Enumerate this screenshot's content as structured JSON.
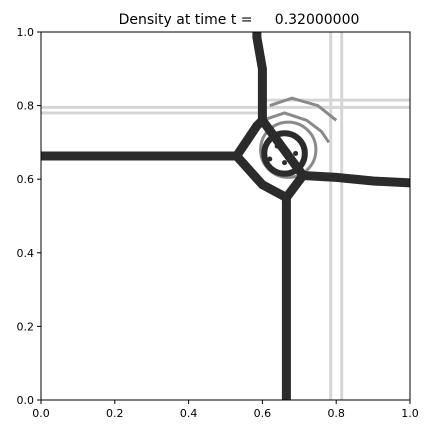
{
  "chart_data": {
    "type": "heatmap",
    "title": "Density at time t =     0.32000000",
    "xlabel": "",
    "ylabel": "",
    "xlim": [
      0.0,
      1.0
    ],
    "ylim": [
      0.0,
      1.0
    ],
    "x_ticks": [
      "0.0",
      "0.2",
      "0.4",
      "0.6",
      "0.8",
      "1.0"
    ],
    "y_ticks": [
      "0.0",
      "0.2",
      "0.4",
      "0.6",
      "0.8",
      "1.0"
    ],
    "grid": false,
    "colormap": "grayscale contour lines (black = strong gradient)",
    "colors": {
      "strong": "#2b2b2b",
      "medium": "#8a8a8a",
      "faint": "#d6d6d6",
      "background": "#ffffff"
    },
    "features": [
      {
        "name": "horizontal-shock-left",
        "strength": "strong",
        "points": [
          [
            0.0,
            0.663
          ],
          [
            0.53,
            0.663
          ]
        ]
      },
      {
        "name": "vertical-shock-top",
        "strength": "strong",
        "points": [
          [
            0.585,
            1.0
          ],
          [
            0.585,
            0.985
          ],
          [
            0.6,
            0.9
          ],
          [
            0.6,
            0.76
          ]
        ]
      },
      {
        "name": "horizontal-shock-right",
        "strength": "strong",
        "points": [
          [
            0.71,
            0.61
          ],
          [
            0.8,
            0.605
          ],
          [
            0.9,
            0.595
          ],
          [
            1.0,
            0.59
          ]
        ]
      },
      {
        "name": "vertical-shock-bottom",
        "strength": "strong",
        "points": [
          [
            0.665,
            0.55
          ],
          [
            0.665,
            0.0
          ]
        ]
      },
      {
        "name": "diamond-contact",
        "strength": "strong",
        "points": [
          [
            0.53,
            0.663
          ],
          [
            0.585,
            0.745
          ],
          [
            0.6,
            0.76
          ],
          [
            0.71,
            0.61
          ],
          [
            0.665,
            0.55
          ],
          [
            0.6,
            0.585
          ],
          [
            0.53,
            0.663
          ]
        ]
      },
      {
        "name": "faint-vertical-1",
        "strength": "faint",
        "points": [
          [
            0.785,
            0.0
          ],
          [
            0.785,
            1.0
          ]
        ]
      },
      {
        "name": "faint-vertical-2",
        "strength": "faint",
        "points": [
          [
            0.815,
            0.0
          ],
          [
            0.815,
            1.0
          ]
        ]
      },
      {
        "name": "faint-horizontal-1",
        "strength": "faint",
        "points": [
          [
            0.0,
            0.795
          ],
          [
            1.0,
            0.795
          ]
        ]
      },
      {
        "name": "faint-horizontal-2",
        "strength": "faint",
        "points": [
          [
            0.6,
            0.815
          ],
          [
            1.0,
            0.815
          ]
        ]
      },
      {
        "name": "faint-horizontal-3",
        "strength": "faint",
        "points": [
          [
            0.0,
            0.78
          ],
          [
            0.6,
            0.78
          ]
        ]
      },
      {
        "name": "vortex-arc-1",
        "strength": "medium",
        "points": [
          [
            0.6,
            0.76
          ],
          [
            0.66,
            0.78
          ],
          [
            0.72,
            0.76
          ],
          [
            0.76,
            0.73
          ],
          [
            0.78,
            0.7
          ]
        ]
      },
      {
        "name": "vortex-arc-2",
        "strength": "medium",
        "points": [
          [
            0.62,
            0.8
          ],
          [
            0.68,
            0.82
          ],
          [
            0.75,
            0.8
          ],
          [
            0.8,
            0.76
          ]
        ]
      }
    ],
    "rings": [
      {
        "name": "inner-vortex-ring",
        "strength": "strong",
        "cx": 0.66,
        "cy": 0.67,
        "r": 0.055
      },
      {
        "name": "outer-vortex-ring",
        "strength": "medium",
        "cx": 0.67,
        "cy": 0.68,
        "r": 0.075
      }
    ],
    "dots": [
      {
        "name": "vortex-core-dot-1",
        "x": 0.62,
        "y": 0.655
      },
      {
        "name": "vortex-core-dot-2",
        "x": 0.66,
        "y": 0.645
      },
      {
        "name": "vortex-core-dot-3",
        "x": 0.69,
        "y": 0.67
      },
      {
        "name": "vortex-core-dot-4",
        "x": 0.64,
        "y": 0.69
      }
    ]
  }
}
